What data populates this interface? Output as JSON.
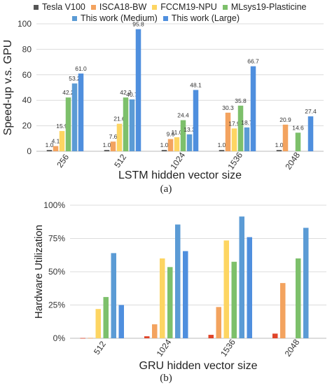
{
  "legend": [
    {
      "name": "Tesla V100",
      "color": "#555555"
    },
    {
      "name": "ISCA18-BW",
      "color": "#f3a35f"
    },
    {
      "name": "FCCM19-NPU",
      "color": "#fdd562"
    },
    {
      "name": "MLsys19-Plasticine",
      "color": "#7dc06b"
    },
    {
      "name": "This work (Medium)",
      "color": "#5b9bd5"
    },
    {
      "name": "This work (Large)",
      "color": "#4f8fde"
    }
  ],
  "captions": {
    "a": "(a)",
    "b": "(b)"
  },
  "chart_data": [
    {
      "type": "bar",
      "categories": [
        "256",
        "512",
        "1024",
        "1536",
        "2048"
      ],
      "xlabel": "LSTM hidden vector size",
      "ylabel": "Speed-up v.s. GPU",
      "ylim": [
        0,
        100
      ],
      "yticks": [
        0,
        20,
        40,
        60,
        80,
        100
      ],
      "yticklabels": [
        "0",
        "20",
        "40",
        "60",
        "80",
        "100"
      ],
      "series": [
        {
          "name": "Tesla V100",
          "color": "#555555",
          "values": [
            1.0,
            1.0,
            1.0,
            1.0,
            1.0
          ],
          "labels": [
            "1.0",
            "1.0",
            "1.0",
            "1.0",
            "1.0"
          ]
        },
        {
          "name": "ISCA18-BW",
          "color": "#f3a35f",
          "values": [
            4.1,
            7.6,
            9.6,
            30.3,
            20.9
          ],
          "labels": [
            "4.1",
            "7.6",
            "9.6",
            "30.3",
            "20.9"
          ]
        },
        {
          "name": "FCCM19-NPU",
          "color": "#fdd562",
          "values": [
            15.9,
            21.6,
            11.0,
            17.9,
            null
          ],
          "labels": [
            "15.9",
            "21.6",
            "11.0",
            "17.9",
            ""
          ]
        },
        {
          "name": "MLsys19-Plasticine",
          "color": "#7dc06b",
          "values": [
            42.2,
            42.2,
            24.4,
            35.8,
            14.6
          ],
          "labels": [
            "42.2",
            "42.2",
            "24.4",
            "35.8",
            "14.6"
          ]
        },
        {
          "name": "This work (Medium)",
          "color": "#5b9bd5",
          "values": [
            53.2,
            40.7,
            13.3,
            18.7,
            null
          ],
          "labels": [
            "53.2",
            "40.7",
            "13.3",
            "18.7",
            ""
          ]
        },
        {
          "name": "This work (Large)",
          "color": "#4f8fde",
          "values": [
            61.0,
            95.8,
            48.1,
            66.7,
            27.4
          ],
          "labels": [
            "61.0",
            "95.8",
            "48.1",
            "66.7",
            "27.4"
          ]
        }
      ],
      "grid": true
    },
    {
      "type": "bar",
      "categories": [
        "512",
        "1024",
        "1536",
        "2048"
      ],
      "xlabel": "GRU hidden vector size",
      "ylabel": "Hardware Utilization",
      "ylim": [
        0,
        100
      ],
      "yticks": [
        0,
        25,
        50,
        75,
        100
      ],
      "yticklabels": [
        "0%",
        "25%",
        "50%",
        "75%",
        "100%"
      ],
      "series": [
        {
          "name": "Tesla V100",
          "color": "#e0452a",
          "values": [
            0.2,
            1.5,
            2.6,
            3.5
          ]
        },
        {
          "name": "ISCA18-BW",
          "color": "#f3a35f",
          "values": [
            0.3,
            10.5,
            23.5,
            41.5
          ]
        },
        {
          "name": "FCCM19-NPU",
          "color": "#fdd562",
          "values": [
            22.0,
            60.0,
            73.5,
            null
          ]
        },
        {
          "name": "MLsys19-Plasticine",
          "color": "#7dc06b",
          "values": [
            31.0,
            53.5,
            57.5,
            60.0
          ]
        },
        {
          "name": "This work (Medium)",
          "color": "#5b9bd5",
          "values": [
            64.0,
            85.5,
            91.5,
            83.0
          ]
        },
        {
          "name": "This work (Large)",
          "color": "#4f8fde",
          "values": [
            25.0,
            65.5,
            76.0,
            null
          ]
        }
      ],
      "grid": true
    }
  ]
}
